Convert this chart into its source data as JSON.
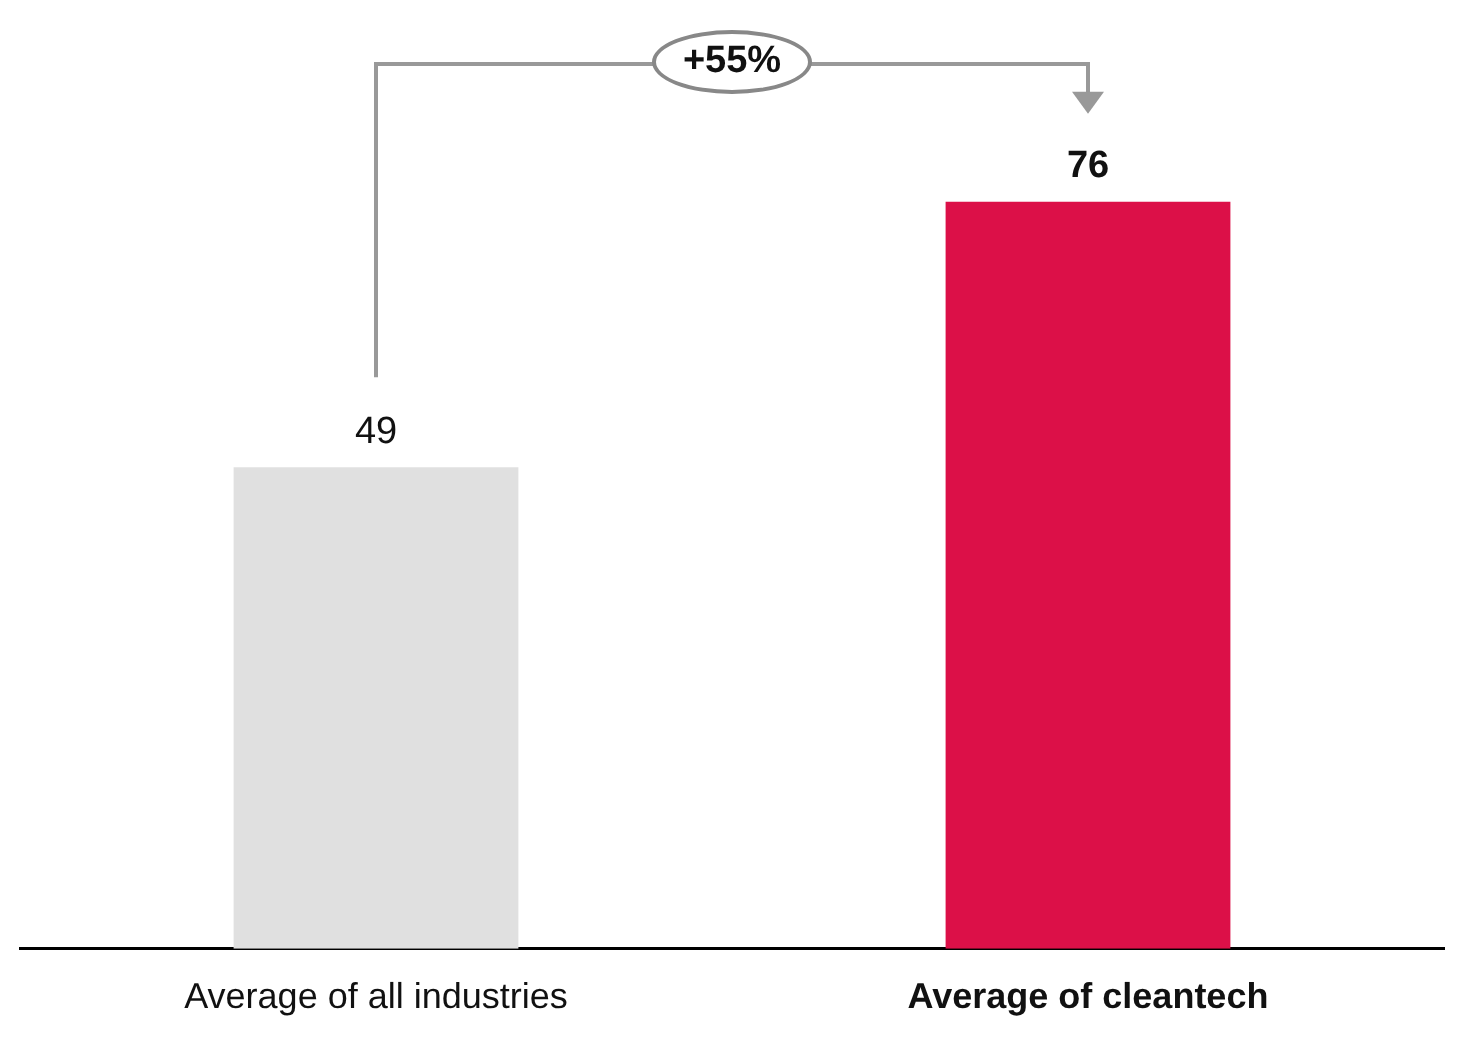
{
  "chart_data": {
    "type": "bar",
    "categories": [
      "Average of all industries",
      "Average of cleantech"
    ],
    "values": [
      49,
      76
    ],
    "colors": [
      "#e0e0e0",
      "#dc1048"
    ],
    "data_labels": true,
    "grid": false,
    "legend": false,
    "annotations": [
      "+55%"
    ]
  }
}
